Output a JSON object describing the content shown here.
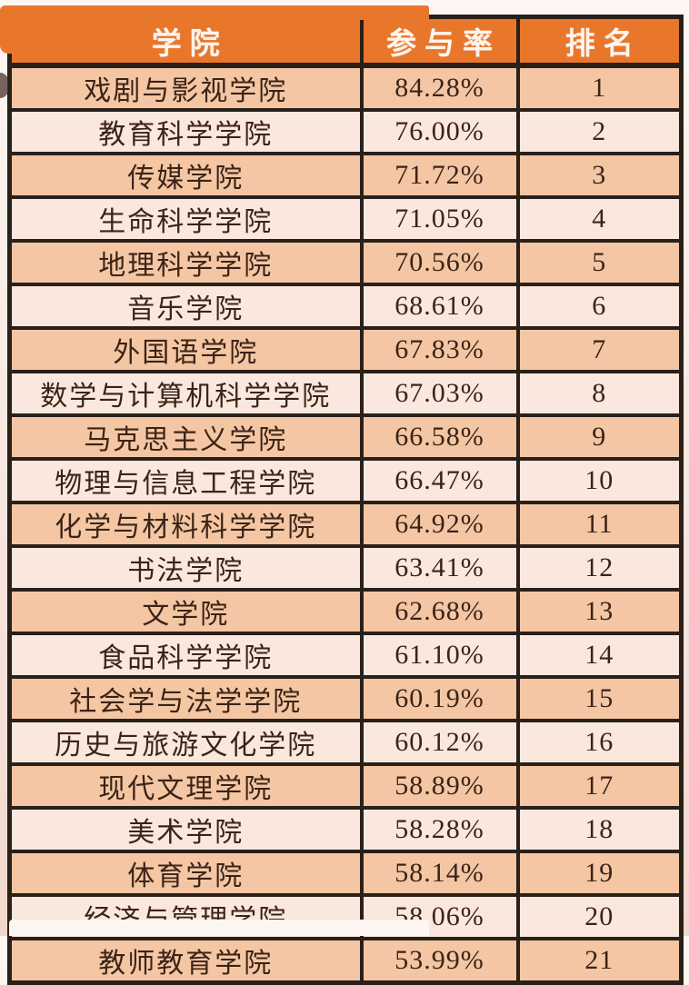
{
  "colors": {
    "header_bg": "#e8772b",
    "header_text": "#fdf5ee",
    "row_dark": "#f4c6a3",
    "row_light": "#fae7dd",
    "border": "#29201a",
    "body_text": "#3b2317"
  },
  "table": {
    "headers": [
      "学院",
      "参与率",
      "排名"
    ],
    "rows": [
      {
        "college": "戏剧与影视学院",
        "rate": "84.28%",
        "rank": "1"
      },
      {
        "college": "教育科学学院",
        "rate": "76.00%",
        "rank": "2"
      },
      {
        "college": "传媒学院",
        "rate": "71.72%",
        "rank": "3"
      },
      {
        "college": "生命科学学院",
        "rate": "71.05%",
        "rank": "4"
      },
      {
        "college": "地理科学学院",
        "rate": "70.56%",
        "rank": "5"
      },
      {
        "college": "音乐学院",
        "rate": "68.61%",
        "rank": "6"
      },
      {
        "college": "外国语学院",
        "rate": "67.83%",
        "rank": "7"
      },
      {
        "college": "数学与计算机科学学院",
        "rate": "67.03%",
        "rank": "8"
      },
      {
        "college": "马克思主义学院",
        "rate": "66.58%",
        "rank": "9"
      },
      {
        "college": "物理与信息工程学院",
        "rate": "66.47%",
        "rank": "10"
      },
      {
        "college": "化学与材料科学学院",
        "rate": "64.92%",
        "rank": "11"
      },
      {
        "college": "书法学院",
        "rate": "63.41%",
        "rank": "12"
      },
      {
        "college": "文学院",
        "rate": "62.68%",
        "rank": "13"
      },
      {
        "college": "食品科学学院",
        "rate": "61.10%",
        "rank": "14"
      },
      {
        "college": "社会学与法学学院",
        "rate": "60.19%",
        "rank": "15"
      },
      {
        "college": "历史与旅游文化学院",
        "rate": "60.12%",
        "rank": "16"
      },
      {
        "college": "现代文理学院",
        "rate": "58.89%",
        "rank": "17"
      },
      {
        "college": "美术学院",
        "rate": "58.28%",
        "rank": "18"
      },
      {
        "college": "体育学院",
        "rate": "58.14%",
        "rank": "19"
      },
      {
        "college": "经济与管理学院",
        "rate": "58.06%",
        "rank": "20"
      },
      {
        "college": "教师教育学院",
        "rate": "53.99%",
        "rank": "21"
      }
    ]
  },
  "chart_data": {
    "type": "table",
    "title": "",
    "columns": [
      "学院",
      "参与率",
      "排名"
    ],
    "categories": [
      "戏剧与影视学院",
      "教育科学学院",
      "传媒学院",
      "生命科学学院",
      "地理科学学院",
      "音乐学院",
      "外国语学院",
      "数学与计算机科学学院",
      "马克思主义学院",
      "物理与信息工程学院",
      "化学与材料科学学院",
      "书法学院",
      "文学院",
      "食品科学学院",
      "社会学与法学学院",
      "历史与旅游文化学院",
      "现代文理学院",
      "美术学院",
      "体育学院",
      "经济与管理学院",
      "教师教育学院"
    ],
    "series": [
      {
        "name": "参与率(%)",
        "values": [
          84.28,
          76.0,
          71.72,
          71.05,
          70.56,
          68.61,
          67.83,
          67.03,
          66.58,
          66.47,
          64.92,
          63.41,
          62.68,
          61.1,
          60.19,
          60.12,
          58.89,
          58.28,
          58.14,
          58.06,
          53.99
        ]
      },
      {
        "name": "排名",
        "values": [
          1,
          2,
          3,
          4,
          5,
          6,
          7,
          8,
          9,
          10,
          11,
          12,
          13,
          14,
          15,
          16,
          17,
          18,
          19,
          20,
          21
        ]
      }
    ]
  }
}
